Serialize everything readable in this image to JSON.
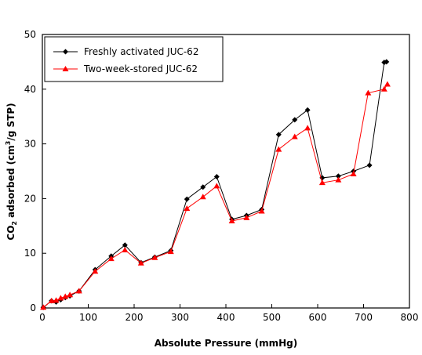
{
  "chart_data": {
    "type": "line",
    "xlabel": "Absolute Pressure (mmHg)",
    "ylabel": {
      "prefix": "CO",
      "sub": "2",
      "mid": " adsorbed (cm",
      "sup": "3",
      "suffix": "/g STP)"
    },
    "xlim": [
      0,
      800
    ],
    "ylim": [
      0,
      50
    ],
    "xticks": [
      0,
      100,
      200,
      300,
      400,
      500,
      600,
      700,
      800
    ],
    "yticks": [
      0,
      10,
      20,
      30,
      40,
      50
    ],
    "grid": false,
    "legend_position": "top-left",
    "series": [
      {
        "name": "Freshly activated JUC-62",
        "color": "#000000",
        "marker": "diamond",
        "points": [
          [
            2,
            0.1
          ],
          [
            20,
            1.3
          ],
          [
            30,
            1.1
          ],
          [
            40,
            1.5
          ],
          [
            50,
            1.9
          ],
          [
            60,
            2.2
          ],
          [
            80,
            3.1
          ],
          [
            115,
            7.0
          ],
          [
            150,
            9.5
          ],
          [
            180,
            11.5
          ],
          [
            215,
            8.3
          ],
          [
            245,
            9.3
          ],
          [
            280,
            10.5
          ],
          [
            315,
            19.9
          ],
          [
            350,
            22.1
          ],
          [
            380,
            24.0
          ],
          [
            413,
            16.2
          ],
          [
            445,
            16.9
          ],
          [
            478,
            18.0
          ],
          [
            515,
            31.7
          ],
          [
            550,
            34.4
          ],
          [
            578,
            36.2
          ],
          [
            610,
            23.8
          ],
          [
            645,
            24.1
          ],
          [
            678,
            25.0
          ],
          [
            713,
            26.1
          ],
          [
            745,
            44.9
          ],
          [
            750,
            45.0
          ]
        ]
      },
      {
        "name": "Two-week-stored JUC-62",
        "color": "#ff0000",
        "marker": "triangle",
        "points": [
          [
            2,
            0.1
          ],
          [
            20,
            1.3
          ],
          [
            30,
            1.4
          ],
          [
            40,
            1.8
          ],
          [
            50,
            2.1
          ],
          [
            60,
            2.4
          ],
          [
            80,
            3.1
          ],
          [
            115,
            6.7
          ],
          [
            150,
            9.0
          ],
          [
            180,
            10.6
          ],
          [
            215,
            8.2
          ],
          [
            245,
            9.2
          ],
          [
            280,
            10.3
          ],
          [
            315,
            18.2
          ],
          [
            350,
            20.3
          ],
          [
            380,
            22.3
          ],
          [
            413,
            15.9
          ],
          [
            445,
            16.5
          ],
          [
            478,
            17.7
          ],
          [
            515,
            29.0
          ],
          [
            550,
            31.3
          ],
          [
            578,
            32.9
          ],
          [
            610,
            22.9
          ],
          [
            645,
            23.4
          ],
          [
            678,
            24.5
          ],
          [
            710,
            39.3
          ],
          [
            745,
            40.0
          ],
          [
            752,
            40.9
          ]
        ]
      }
    ]
  }
}
